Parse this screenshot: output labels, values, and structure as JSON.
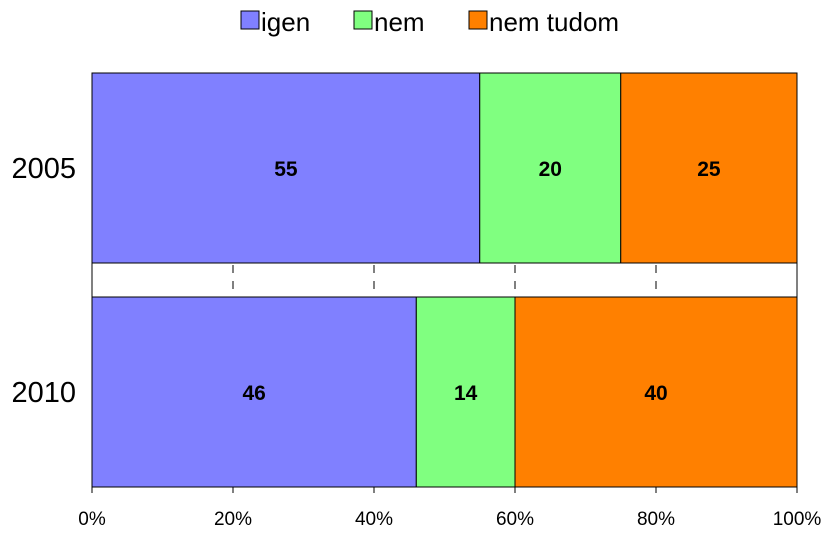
{
  "chart_data": {
    "type": "bar",
    "orientation": "horizontal",
    "stacked": "percent",
    "categories": [
      "2005",
      "2010"
    ],
    "series": [
      {
        "name": "igen",
        "values": [
          55,
          46
        ],
        "color": "#8080ff"
      },
      {
        "name": "nem",
        "values": [
          20,
          14
        ],
        "color": "#80ff80"
      },
      {
        "name": "nem tudom",
        "values": [
          25,
          40
        ],
        "color": "#ff8000"
      }
    ],
    "xlim": [
      0,
      100
    ],
    "x_ticks": [
      "0%",
      "20%",
      "40%",
      "60%",
      "80%",
      "100%"
    ],
    "legend_position": "top",
    "grid": "dashed vertical",
    "data_labels": true
  }
}
